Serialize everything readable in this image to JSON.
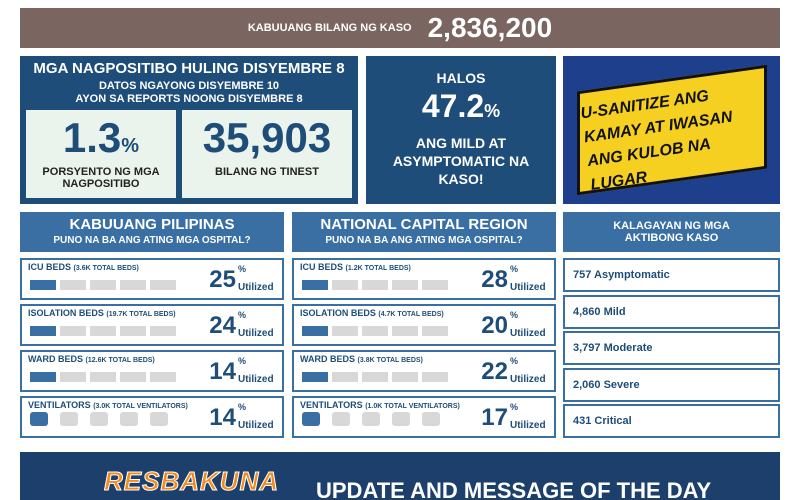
{
  "total_cases": {
    "label": "KABUUANG BILANG NG KASO",
    "value": "2,836,200"
  },
  "positivity": {
    "title": "MGA NAGPOSITIBO HULING DISYEMBRE 8",
    "subtitle_lines": [
      "DATOS NGAYONG DISYEMBRE 10",
      "AYON SA REPORTS NOONG DISYEMBRE 8"
    ],
    "rate": {
      "value": "1.3",
      "unit": "%",
      "label": "PORSYENTO NG MGA NAGPOSITIBO"
    },
    "tested": {
      "value": "35,903",
      "label": "BILANG NG TINEST"
    }
  },
  "mild": {
    "prefix": "HALOS",
    "value": "47.2",
    "unit": "%",
    "label": "ANG MILD AT ASYMPTOMATIC NA KASO!"
  },
  "reminder": {
    "text": "U-SANITIZE ANG KAMAY AT IWASAN ANG KULOB NA LUGAR"
  },
  "hospital_panels": [
    {
      "title": "KABUUANG PILIPINAS",
      "subtitle": "PUNO NA BA ANG ATING MGA OSPITAL?",
      "rows": [
        {
          "name": "ICU BEDS",
          "detail": "(3.6K TOTAL BEDS)",
          "value": "25",
          "unit": "%",
          "status": "Utilized"
        },
        {
          "name": "ISOLATION BEDS",
          "detail": "(19.7K TOTAL BEDS)",
          "value": "24",
          "unit": "%",
          "status": "Utilized"
        },
        {
          "name": "WARD BEDS",
          "detail": "(12.6K TOTAL BEDS)",
          "value": "14",
          "unit": "%",
          "status": "Utilized"
        },
        {
          "name": "VENTILATORS",
          "detail": "(3.0K TOTAL VENTILATORS)",
          "value": "14",
          "unit": "%",
          "status": "Utilized"
        }
      ]
    },
    {
      "title": "NATIONAL CAPITAL REGION",
      "subtitle": "PUNO NA BA ANG ATING MGA OSPITAL?",
      "rows": [
        {
          "name": "ICU BEDS",
          "detail": "(1.2K TOTAL BEDS)",
          "value": "28",
          "unit": "%",
          "status": "Utilized"
        },
        {
          "name": "ISOLATION BEDS",
          "detail": "(4.7K TOTAL BEDS)",
          "value": "20",
          "unit": "%",
          "status": "Utilized"
        },
        {
          "name": "WARD BEDS",
          "detail": "(3.8K TOTAL BEDS)",
          "value": "22",
          "unit": "%",
          "status": "Utilized"
        },
        {
          "name": "VENTILATORS",
          "detail": "(1.0K TOTAL VENTILATORS)",
          "value": "17",
          "unit": "%",
          "status": "Utilized"
        }
      ]
    }
  ],
  "active_cases": {
    "title": "KALAGAYAN NG MGA AKTIBONG KASO",
    "rows": [
      "757 Asymptomatic",
      "4,860 Mild",
      "3,797 Moderate",
      "2,060 Severe",
      "431 Critical"
    ]
  },
  "banner": {
    "logo": "RESBAKUNA",
    "text": "UPDATE AND MESSAGE OF THE DAY"
  }
}
